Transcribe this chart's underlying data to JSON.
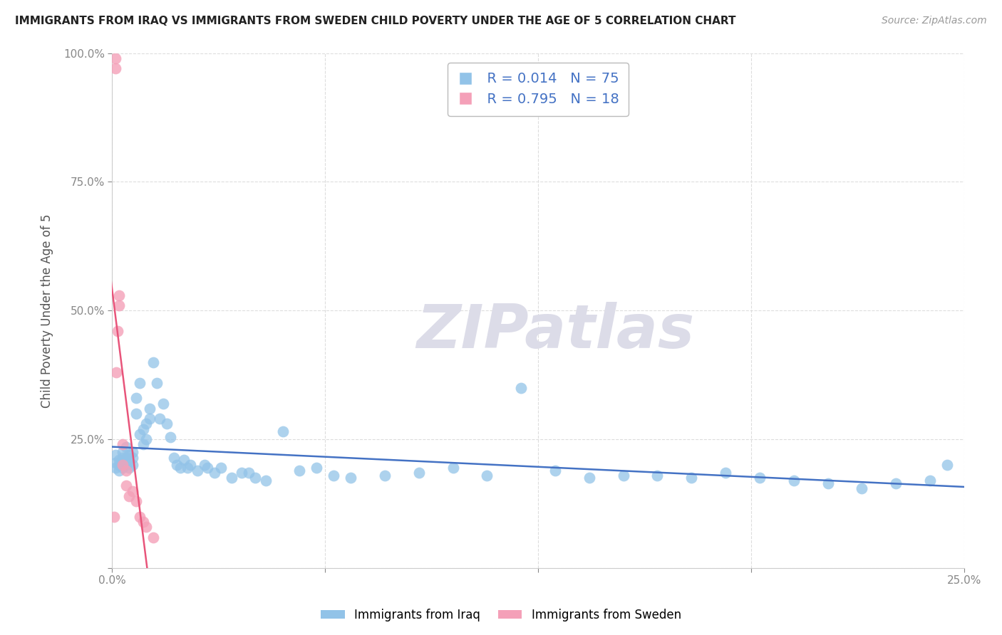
{
  "title": "IMMIGRANTS FROM IRAQ VS IMMIGRANTS FROM SWEDEN CHILD POVERTY UNDER THE AGE OF 5 CORRELATION CHART",
  "source": "Source: ZipAtlas.com",
  "ylabel": "Child Poverty Under the Age of 5",
  "legend1_r": "R = 0.014",
  "legend1_n": "N = 75",
  "legend2_r": "R = 0.795",
  "legend2_n": "N = 18",
  "legend1_label": "Immigrants from Iraq",
  "legend2_label": "Immigrants from Sweden",
  "iraq_color": "#92C3E8",
  "sweden_color": "#F4A0B8",
  "iraq_line_color": "#4472C4",
  "sweden_line_color": "#E8547A",
  "watermark_color": "#DCDCE8",
  "xlim": [
    0.0,
    0.25
  ],
  "ylim": [
    0.0,
    1.0
  ],
  "xtick_positions": [
    0.0,
    0.0625,
    0.125,
    0.1875,
    0.25
  ],
  "xtick_labels": [
    "0.0%",
    "",
    "",
    "",
    "25.0%"
  ],
  "ytick_positions": [
    0.0,
    0.25,
    0.5,
    0.75,
    1.0
  ],
  "ytick_labels": [
    "",
    "25.0%",
    "50.0%",
    "75.0%",
    "100.0%"
  ],
  "iraq_x": [
    0.001,
    0.001,
    0.001,
    0.002,
    0.002,
    0.002,
    0.003,
    0.003,
    0.003,
    0.003,
    0.004,
    0.004,
    0.004,
    0.005,
    0.005,
    0.005,
    0.005,
    0.006,
    0.006,
    0.006,
    0.007,
    0.007,
    0.008,
    0.008,
    0.009,
    0.009,
    0.01,
    0.01,
    0.011,
    0.011,
    0.012,
    0.013,
    0.014,
    0.015,
    0.016,
    0.017,
    0.018,
    0.019,
    0.02,
    0.021,
    0.022,
    0.023,
    0.025,
    0.027,
    0.028,
    0.03,
    0.032,
    0.035,
    0.038,
    0.04,
    0.042,
    0.045,
    0.05,
    0.055,
    0.06,
    0.065,
    0.07,
    0.08,
    0.09,
    0.1,
    0.11,
    0.12,
    0.13,
    0.14,
    0.15,
    0.16,
    0.17,
    0.18,
    0.19,
    0.2,
    0.21,
    0.22,
    0.23,
    0.24,
    0.245
  ],
  "iraq_y": [
    0.195,
    0.205,
    0.22,
    0.19,
    0.2,
    0.21,
    0.195,
    0.21,
    0.225,
    0.215,
    0.235,
    0.2,
    0.215,
    0.195,
    0.21,
    0.22,
    0.205,
    0.225,
    0.2,
    0.215,
    0.3,
    0.33,
    0.26,
    0.36,
    0.24,
    0.27,
    0.25,
    0.28,
    0.31,
    0.29,
    0.4,
    0.36,
    0.29,
    0.32,
    0.28,
    0.255,
    0.215,
    0.2,
    0.195,
    0.21,
    0.195,
    0.2,
    0.19,
    0.2,
    0.195,
    0.185,
    0.195,
    0.175,
    0.185,
    0.185,
    0.175,
    0.17,
    0.265,
    0.19,
    0.195,
    0.18,
    0.175,
    0.18,
    0.185,
    0.195,
    0.18,
    0.35,
    0.19,
    0.175,
    0.18,
    0.18,
    0.175,
    0.185,
    0.175,
    0.17,
    0.165,
    0.155,
    0.165,
    0.17,
    0.2
  ],
  "sweden_x": [
    0.0005,
    0.001,
    0.001,
    0.0012,
    0.0015,
    0.002,
    0.002,
    0.003,
    0.003,
    0.004,
    0.004,
    0.005,
    0.006,
    0.007,
    0.008,
    0.009,
    0.01,
    0.012
  ],
  "sweden_y": [
    0.1,
    0.99,
    0.97,
    0.38,
    0.46,
    0.51,
    0.53,
    0.24,
    0.2,
    0.16,
    0.19,
    0.14,
    0.15,
    0.13,
    0.1,
    0.09,
    0.08,
    0.06
  ]
}
